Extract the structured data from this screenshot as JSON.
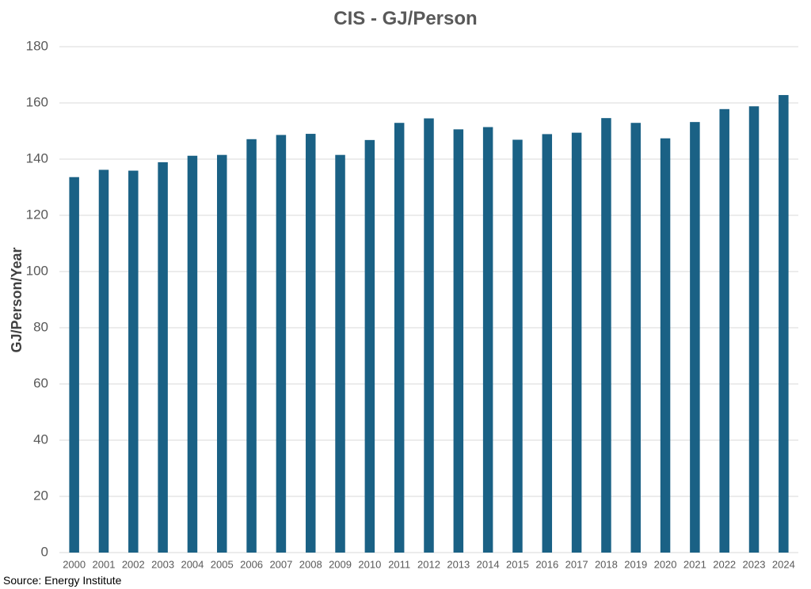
{
  "chart_data": {
    "type": "bar",
    "title": "CIS - GJ/Person",
    "ylabel": "GJ/Person/Year",
    "xlabel": "",
    "categories": [
      "2000",
      "2001",
      "2002",
      "2003",
      "2004",
      "2005",
      "2006",
      "2007",
      "2008",
      "2009",
      "2010",
      "2011",
      "2012",
      "2013",
      "2014",
      "2015",
      "2016",
      "2017",
      "2018",
      "2019",
      "2020",
      "2021",
      "2022",
      "2023",
      "2024"
    ],
    "values": [
      133.6,
      136.2,
      135.9,
      138.9,
      141.2,
      141.5,
      147.1,
      148.6,
      149.0,
      141.5,
      146.8,
      152.9,
      154.5,
      150.6,
      151.4,
      146.9,
      148.9,
      149.4,
      154.6,
      152.9,
      147.4,
      153.2,
      157.8,
      158.8,
      162.8
    ],
    "ylim": [
      0,
      180
    ],
    "yticks": [
      0,
      20,
      40,
      60,
      80,
      100,
      120,
      140,
      160,
      180
    ],
    "grid": true,
    "legend": "none",
    "bar_color": "#1a6185",
    "grid_color": "#d9d9d9",
    "source": "Source: Energy Institute"
  }
}
